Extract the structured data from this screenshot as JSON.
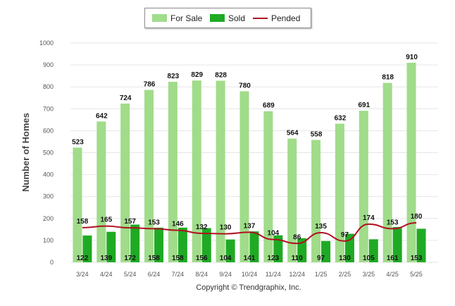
{
  "legend": {
    "for_sale": "For Sale",
    "sold": "Sold",
    "pended": "Pended"
  },
  "copyright": "Copyright © Trendgraphix, Inc.",
  "colors": {
    "for_sale": "#a0dc8a",
    "sold": "#1faa24",
    "pended": "#b01020",
    "grid": "#e6e6e6",
    "axis_text": "#555555"
  },
  "chart_data": {
    "type": "bar",
    "categories": [
      "3/24",
      "4/24",
      "5/24",
      "6/24",
      "7/24",
      "8/24",
      "9/24",
      "10/24",
      "11/24",
      "12/24",
      "1/25",
      "2/25",
      "3/25",
      "4/25",
      "5/25"
    ],
    "series": [
      {
        "name": "For Sale",
        "type": "bar",
        "values": [
          523,
          642,
          724,
          786,
          823,
          829,
          828,
          780,
          689,
          564,
          558,
          632,
          691,
          818,
          910
        ]
      },
      {
        "name": "Sold",
        "type": "bar",
        "values": [
          122,
          139,
          172,
          158,
          158,
          156,
          104,
          141,
          123,
          110,
          97,
          130,
          105,
          161,
          153
        ]
      },
      {
        "name": "Pended",
        "type": "line",
        "values": [
          158,
          165,
          157,
          153,
          146,
          132,
          130,
          137,
          104,
          86,
          135,
          97,
          174,
          153,
          180
        ]
      }
    ],
    "ylabel": "Number of Homes",
    "xlabel": "",
    "ylim": [
      0,
      1000
    ],
    "yticks": [
      0,
      100,
      200,
      300,
      400,
      500,
      600,
      700,
      800,
      900,
      1000
    ],
    "grid": true,
    "legend_position": "top-center"
  }
}
